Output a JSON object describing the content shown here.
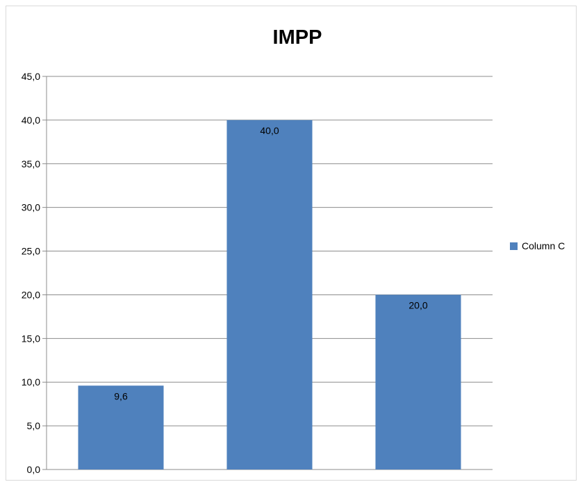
{
  "chart_data": {
    "type": "bar",
    "title": "IMPP",
    "categories": [
      "",
      "",
      ""
    ],
    "series": [
      {
        "name": "Column C",
        "values": [
          9.6,
          40.0,
          20.0
        ],
        "value_labels": [
          "9,6",
          "40,0",
          "20,0"
        ]
      }
    ],
    "ylim": [
      0,
      45
    ],
    "y_ticks": [
      0,
      5,
      10,
      15,
      20,
      25,
      30,
      35,
      40,
      45
    ],
    "y_tick_labels": [
      "0,0",
      "5,0",
      "10,0",
      "15,0",
      "20,0",
      "25,0",
      "30,0",
      "35,0",
      "40,0",
      "45,0"
    ],
    "grid": true,
    "legend_position": "right",
    "bar_color": "#4f81bd"
  }
}
